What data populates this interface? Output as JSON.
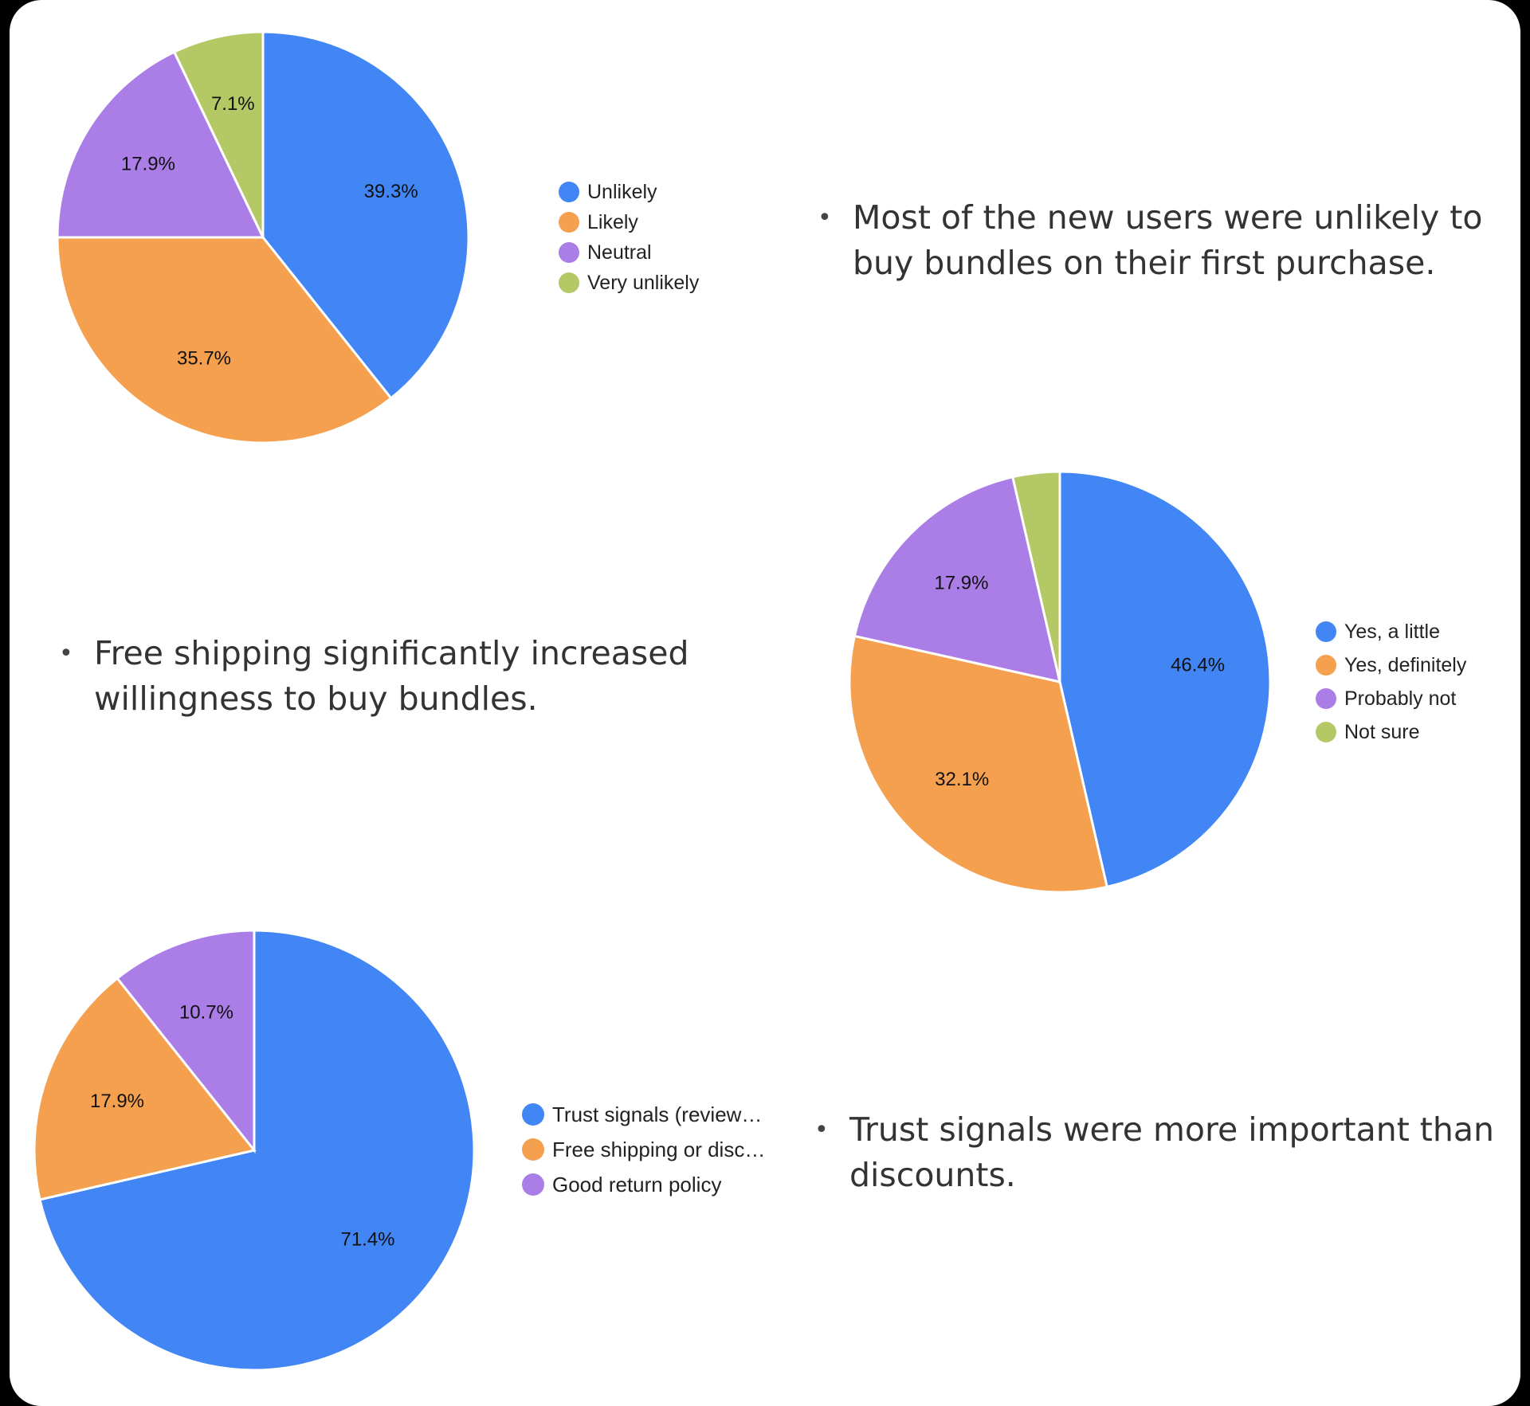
{
  "chart_data": [
    {
      "type": "pie",
      "categories": [
        "Unlikely",
        "Likely",
        "Neutral",
        "Very unlikely"
      ],
      "values": [
        39.3,
        35.7,
        17.9,
        7.1
      ],
      "labels": [
        "39.3%",
        "35.7%",
        "17.9%",
        "7.1%"
      ],
      "colors": [
        "#4285f4",
        "#f4a04f",
        "#ab7de6",
        "#b4c865"
      ],
      "legend": "right"
    },
    {
      "type": "pie",
      "categories": [
        "Yes, a little",
        "Yes, definitely",
        "Probably not",
        "Not sure"
      ],
      "values": [
        46.4,
        32.1,
        17.9,
        3.6
      ],
      "labels": [
        "46.4%",
        "32.1%",
        "17.9%",
        ""
      ],
      "colors": [
        "#4285f4",
        "#f4a04f",
        "#ab7de6",
        "#b4c865"
      ],
      "legend": "right"
    },
    {
      "type": "pie",
      "categories": [
        "Trust signals (review…",
        "Free shipping or disc…",
        "Good return policy"
      ],
      "values": [
        71.4,
        17.9,
        10.7
      ],
      "labels": [
        "71.4%",
        "17.9%",
        "10.7%"
      ],
      "colors": [
        "#4285f4",
        "#f4a04f",
        "#ab7de6"
      ],
      "legend": "right"
    }
  ],
  "bullets": {
    "bullet_mark": "•",
    "bundles_first_purchase": "Most of the new users were unlikely to buy bundles on their first purchase.",
    "free_shipping": "Free shipping significantly increased willingness to buy bundles.",
    "trust_signals": "Trust signals were more important than discounts."
  }
}
